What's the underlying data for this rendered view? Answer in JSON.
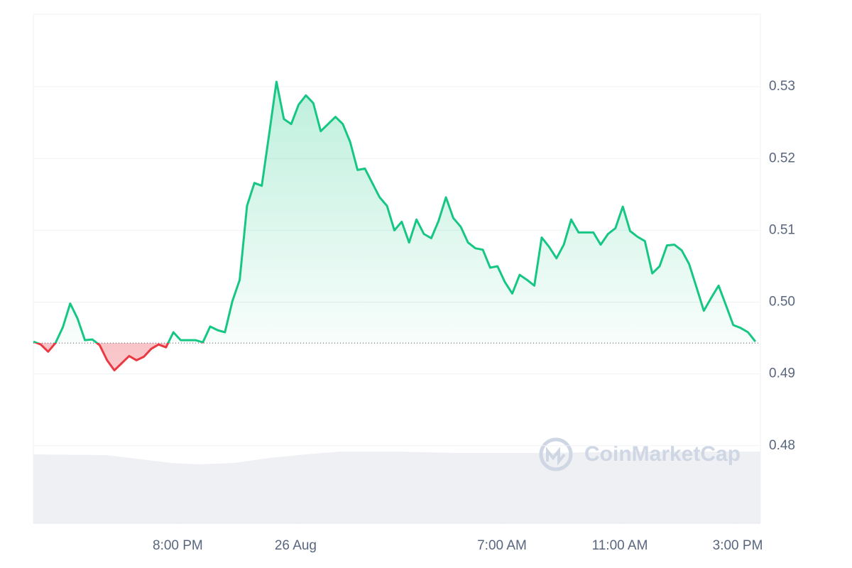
{
  "chart_data": {
    "type": "line",
    "watermark": "CoinMarketCap",
    "x": [
      15.1,
      15.35,
      15.6,
      15.85,
      16.1,
      16.35,
      16.6,
      16.85,
      17.1,
      17.35,
      17.6,
      17.85,
      18.1,
      18.35,
      18.6,
      18.85,
      19.1,
      19.35,
      19.6,
      19.85,
      20.1,
      20.35,
      20.6,
      20.85,
      21.1,
      21.35,
      21.6,
      21.85,
      22.1,
      22.35,
      22.6,
      22.85,
      23.1,
      23.35,
      23.6,
      23.85,
      24.1,
      24.35,
      24.6,
      24.85,
      25.1,
      25.35,
      25.6,
      25.85,
      26.1,
      26.35,
      26.6,
      26.85,
      27.1,
      27.35,
      27.6,
      27.85,
      28.1,
      28.35,
      28.6,
      28.85,
      29.1,
      29.35,
      29.6,
      29.85,
      30.1,
      30.35,
      30.6,
      30.85,
      31.1,
      31.35,
      31.6,
      31.85,
      32.1,
      32.35,
      32.6,
      32.85,
      33.1,
      33.35,
      33.6,
      33.85,
      34.1,
      34.35,
      34.6,
      34.85,
      35.1,
      35.35,
      35.6,
      35.85,
      36.1,
      36.35,
      36.6,
      36.85,
      37.1,
      37.35,
      37.6,
      37.85,
      38.1,
      38.35,
      38.6,
      38.85,
      39.1,
      39.35,
      39.6
    ],
    "values": [
      0.4945,
      0.4941,
      0.4931,
      0.4943,
      0.4965,
      0.4998,
      0.4977,
      0.4947,
      0.4948,
      0.494,
      0.4919,
      0.4905,
      0.4915,
      0.4925,
      0.4919,
      0.4924,
      0.4935,
      0.4941,
      0.4937,
      0.4958,
      0.4947,
      0.4947,
      0.4947,
      0.4944,
      0.4966,
      0.4961,
      0.4958,
      0.5001,
      0.5031,
      0.5134,
      0.5166,
      0.5162,
      0.5234,
      0.5307,
      0.5255,
      0.5248,
      0.5275,
      0.5288,
      0.5277,
      0.5238,
      0.5248,
      0.5258,
      0.5248,
      0.5223,
      0.5184,
      0.5186,
      0.5166,
      0.5146,
      0.5134,
      0.51,
      0.5112,
      0.5083,
      0.5115,
      0.5095,
      0.5089,
      0.5113,
      0.5146,
      0.5117,
      0.5105,
      0.5083,
      0.5075,
      0.5073,
      0.5048,
      0.505,
      0.5028,
      0.5012,
      0.5038,
      0.5031,
      0.5023,
      0.509,
      0.5077,
      0.5061,
      0.508,
      0.5115,
      0.5097,
      0.5097,
      0.5097,
      0.508,
      0.5095,
      0.5103,
      0.5133,
      0.5099,
      0.5091,
      0.5085,
      0.504,
      0.505,
      0.5079,
      0.508,
      0.5072,
      0.5053,
      0.5021,
      0.4988,
      0.5006,
      0.5023,
      0.4996,
      0.4968,
      0.4964,
      0.4958,
      0.4945
    ],
    "baseline": 0.4943,
    "color": "#16c784",
    "down_color": "#ea3943",
    "xlim": [
      15.1,
      39.77
    ],
    "xticks": [
      {
        "value": 20,
        "label": "8:00 PM"
      },
      {
        "value": 24,
        "label": "26 Aug"
      },
      {
        "value": 31,
        "label": "7:00 AM"
      },
      {
        "value": 35,
        "label": "11:00 AM"
      },
      {
        "value": 39,
        "label": "3:00 PM"
      }
    ],
    "ylim": [
      0.4692,
      0.5401
    ],
    "yticks": [
      0.48,
      0.49,
      {
        "value": 0.5,
        "label": "0.50"
      },
      0.51,
      0.52,
      0.53
    ],
    "grid": true
  }
}
